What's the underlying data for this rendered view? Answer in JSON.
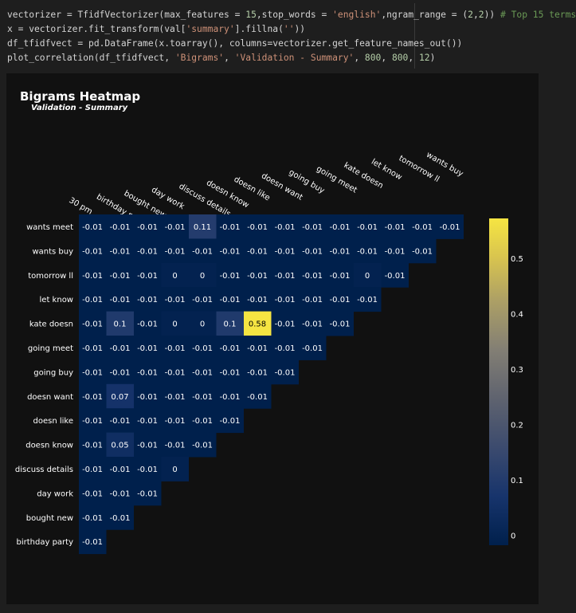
{
  "code": {
    "line1": {
      "a": "vectorizer = TfidfVectorizer(max_features = ",
      "n1": "15",
      "b": ",stop_words = ",
      "s1": "'english'",
      "c": ",ngram_range = (",
      "n2": "2",
      "d": ",",
      "n3": "2",
      "e": ")) ",
      "cmt": "# Top 15 terms"
    },
    "line2": {
      "a": "x = vectorizer.fit_transform(val[",
      "s1": "'summary'",
      "b": "].fillna(",
      "s2": "''",
      "c": "))"
    },
    "line3": {
      "a": "df_tfidfvect = pd.DataFrame(x.toarray(), columns=vectorizer.get_feature_names_out())"
    },
    "line4": {
      "a": "plot_correlation(df_tfidfvect, ",
      "s1": "'Bigrams'",
      "b": ", ",
      "s2": "'Validation - Summary'",
      "c": ", ",
      "n1": "800",
      "d": ", ",
      "n2": "800",
      "e": ", ",
      "n3": "12",
      "f": ")"
    }
  },
  "chart_data": {
    "type": "heatmap",
    "title": "Bigrams Heatmap",
    "subtitle": "Validation - Summary",
    "columns": [
      "30 pm",
      "birthday party",
      "bought new",
      "day work",
      "discuss details",
      "doesn know",
      "doesn like",
      "doesn want",
      "going buy",
      "going meet",
      "kate doesn",
      "let know",
      "tomorrow ll",
      "wants buy"
    ],
    "rows": [
      "wants meet",
      "wants buy",
      "tomorrow ll",
      "let know",
      "kate doesn",
      "going meet",
      "going buy",
      "doesn want",
      "doesn like",
      "doesn know",
      "discuss details",
      "day work",
      "bought new",
      "birthday party"
    ],
    "values": [
      [
        -0.01,
        -0.01,
        -0.01,
        -0.01,
        0.11,
        -0.01,
        -0.01,
        -0.01,
        -0.01,
        -0.01,
        -0.01,
        -0.01,
        -0.01,
        -0.01
      ],
      [
        -0.01,
        -0.01,
        -0.01,
        -0.01,
        -0.01,
        -0.01,
        -0.01,
        -0.01,
        -0.01,
        -0.01,
        -0.01,
        -0.01,
        -0.01
      ],
      [
        -0.01,
        -0.01,
        -0.01,
        -0.0,
        -0.0,
        -0.01,
        -0.01,
        -0.01,
        -0.01,
        -0.01,
        -0.0,
        -0.01
      ],
      [
        -0.01,
        -0.01,
        -0.01,
        -0.01,
        -0.01,
        -0.01,
        -0.01,
        -0.01,
        -0.01,
        -0.01,
        -0.01
      ],
      [
        -0.01,
        0.1,
        -0.01,
        -0.0,
        -0.0,
        0.1,
        0.58,
        -0.01,
        -0.01,
        -0.01
      ],
      [
        -0.01,
        -0.01,
        -0.01,
        -0.01,
        -0.01,
        -0.01,
        -0.01,
        -0.01,
        -0.01
      ],
      [
        -0.01,
        -0.01,
        -0.01,
        -0.01,
        -0.01,
        -0.01,
        -0.01,
        -0.01
      ],
      [
        -0.01,
        0.07,
        -0.01,
        -0.01,
        -0.01,
        -0.01,
        -0.01
      ],
      [
        -0.01,
        -0.01,
        -0.01,
        -0.01,
        -0.01,
        -0.01
      ],
      [
        -0.01,
        0.05,
        -0.01,
        -0.01,
        -0.01
      ],
      [
        -0.01,
        -0.01,
        -0.01,
        -0.0
      ],
      [
        -0.01,
        -0.01,
        -0.01
      ],
      [
        -0.01,
        -0.01
      ],
      [
        -0.01
      ]
    ],
    "colorscale": "cividis",
    "vmin": -0.01,
    "vmax": 0.58,
    "colorbar_ticks": [
      0,
      0.1,
      0.2,
      0.3,
      0.4,
      0.5
    ],
    "colors": {
      "low": "#00204c",
      "mid": "#7c7b78",
      "high": "#f6e542"
    }
  }
}
